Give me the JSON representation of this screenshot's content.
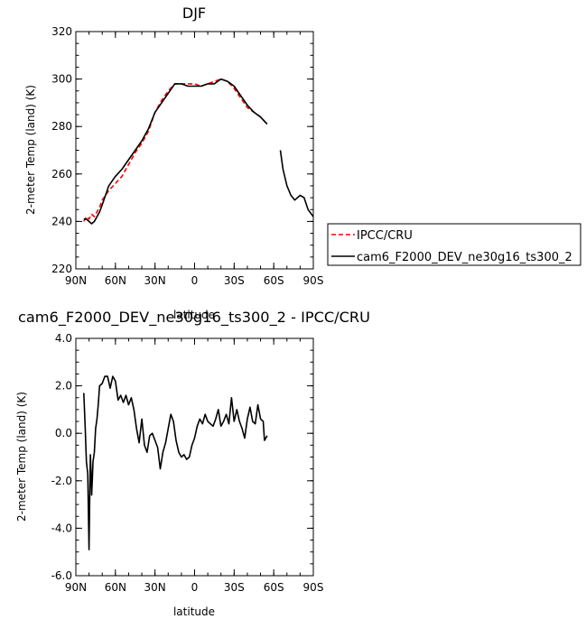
{
  "chart_data": [
    {
      "type": "line",
      "title": "DJF",
      "xlabel": "latitude",
      "ylabel": "2-meter Temp (land) (K)",
      "xlim": [
        90,
        -90
      ],
      "ylim": [
        220,
        320
      ],
      "x_ticks": [
        90,
        60,
        30,
        0,
        -30,
        -60,
        -90
      ],
      "x_tick_labels": [
        "90N",
        "60N",
        "30N",
        "0",
        "30S",
        "60S",
        "90S"
      ],
      "y_ticks": [
        220,
        240,
        260,
        280,
        300,
        320
      ],
      "y_tick_labels": [
        "220",
        "240",
        "260",
        "280",
        "300",
        "320"
      ],
      "legend_position": "right",
      "series": [
        {
          "name": "IPCC/CRU",
          "color": "#ff0000",
          "dash": "dashed",
          "segments": [
            {
              "x": [
                84,
                82,
                80,
                78,
                76,
                74,
                72,
                70,
                65,
                60,
                55,
                50,
                45,
                40,
                35,
                30,
                25,
                20,
                15,
                10,
                5,
                0,
                -5,
                -10,
                -15,
                -20,
                -25,
                -30,
                -35,
                -40,
                -45,
                -50,
                -55
              ],
              "y": [
                240,
                242,
                241,
                243,
                242,
                244,
                246,
                249,
                253,
                256,
                259,
                264,
                269,
                273,
                278,
                286,
                291,
                295,
                298,
                298,
                298,
                298,
                297,
                298,
                299,
                300,
                299,
                296,
                292,
                288,
                286,
                284,
                281
              ]
            }
          ]
        },
        {
          "name": "cam6_F2000_DEV_ne30g16_ts300_2",
          "color": "#000000",
          "dash": "solid",
          "segments": [
            {
              "x": [
                84,
                82,
                80,
                78,
                76,
                74,
                72,
                70,
                65,
                60,
                55,
                50,
                45,
                40,
                35,
                30,
                25,
                20,
                15,
                10,
                5,
                0,
                -5,
                -10,
                -15,
                -20,
                -25,
                -30,
                -35,
                -40,
                -45,
                -50,
                -55
              ],
              "y": [
                241,
                241,
                240,
                239,
                240,
                242,
                244,
                247,
                255,
                259,
                262,
                266,
                270,
                274,
                279,
                286,
                290,
                294,
                298,
                298,
                297,
                297,
                297,
                298,
                298,
                300,
                299,
                297,
                293,
                289,
                286,
                284,
                281
              ]
            },
            {
              "x": [
                -65,
                -67,
                -70,
                -73,
                -76,
                -80,
                -83,
                -86,
                -90
              ],
              "y": [
                270,
                262,
                255,
                251,
                249,
                251,
                250,
                245,
                242
              ]
            }
          ]
        }
      ]
    },
    {
      "type": "line",
      "title": "cam6_F2000_DEV_ne30g16_ts300_2 - IPCC/CRU",
      "xlabel": "latitude",
      "ylabel": "2-meter Temp (land) (K)",
      "xlim": [
        90,
        -90
      ],
      "ylim": [
        -6,
        4
      ],
      "x_ticks": [
        90,
        60,
        30,
        0,
        -30,
        -60,
        -90
      ],
      "x_tick_labels": [
        "90N",
        "60N",
        "30N",
        "0",
        "30S",
        "60S",
        "90S"
      ],
      "y_ticks": [
        -6,
        -4,
        -2,
        0,
        2,
        4
      ],
      "y_tick_labels": [
        "-6.0",
        "-4.0",
        "-2.0",
        "0.0",
        "2.0",
        "4.0"
      ],
      "series": [
        {
          "color": "#000000",
          "dash": "solid",
          "segments": [
            {
              "x": [
                84,
                83,
                82,
                81,
                80,
                79.5,
                79,
                78.5,
                78,
                77.5,
                77,
                76,
                75,
                74,
                73,
                72,
                70,
                68,
                66,
                64,
                62,
                60,
                58,
                56,
                54,
                52,
                50,
                48,
                46,
                44,
                42,
                40,
                38,
                36,
                34,
                32,
                30,
                28,
                26,
                24,
                22,
                20,
                18,
                16,
                14,
                12,
                10,
                8,
                6,
                4,
                2,
                0,
                -2,
                -4,
                -6,
                -8,
                -10,
                -12,
                -14,
                -16,
                -18,
                -20,
                -22,
                -24,
                -26,
                -28,
                -30,
                -32,
                -34,
                -36,
                -38,
                -40,
                -42,
                -44,
                -46,
                -48,
                -50,
                -52,
                -53,
                -54,
                -55
              ],
              "y": [
                1.7,
                0.4,
                -1.2,
                -1.7,
                -4.9,
                -2.9,
                -0.9,
                -1.6,
                -2.6,
                -1.9,
                -1.2,
                -0.8,
                0.2,
                0.6,
                1.2,
                2.0,
                2.1,
                2.4,
                2.4,
                1.9,
                2.4,
                2.2,
                1.4,
                1.6,
                1.3,
                1.6,
                1.2,
                1.5,
                1.0,
                0.2,
                -0.4,
                0.6,
                -0.5,
                -0.8,
                -0.1,
                0.0,
                -0.3,
                -0.6,
                -1.5,
                -0.8,
                -0.4,
                0.2,
                0.8,
                0.5,
                -0.3,
                -0.8,
                -1.0,
                -0.9,
                -1.1,
                -1.0,
                -0.5,
                -0.2,
                0.3,
                0.6,
                0.4,
                0.8,
                0.5,
                0.4,
                0.3,
                0.6,
                1.0,
                0.3,
                0.5,
                0.8,
                0.4,
                1.5,
                0.5,
                1.0,
                0.5,
                0.2,
                -0.2,
                0.6,
                1.1,
                0.5,
                0.4,
                1.2,
                0.6,
                0.5,
                -0.3,
                -0.2,
                -0.1
              ]
            }
          ]
        }
      ]
    }
  ]
}
